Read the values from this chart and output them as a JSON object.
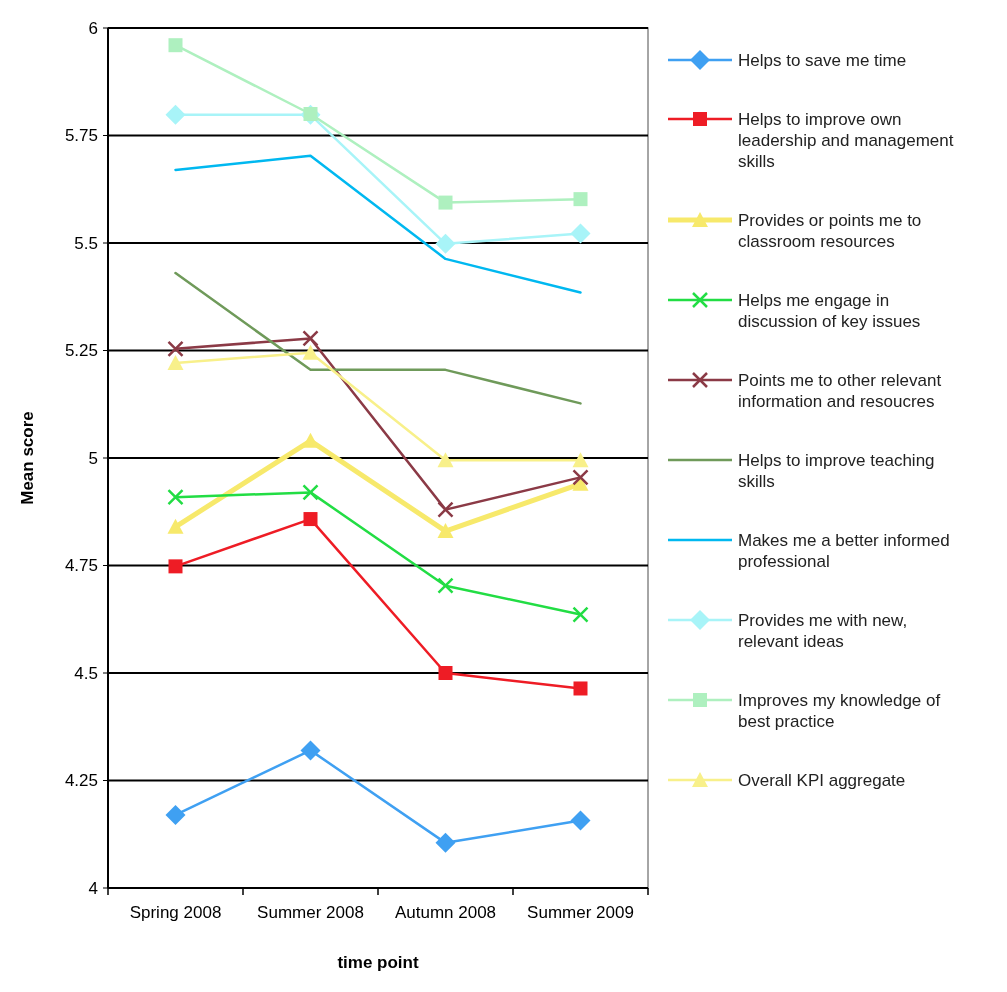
{
  "chart_data": {
    "type": "line",
    "xlabel": "time point",
    "ylabel": "Mean score",
    "categories": [
      "Spring 2008",
      "Summer 2008",
      "Autumn 2008",
      "Summer 2009"
    ],
    "ylim": [
      4,
      6
    ],
    "yticks": [
      4,
      4.25,
      4.5,
      4.75,
      5,
      5.25,
      5.5,
      5.75,
      6
    ],
    "grid": "y",
    "legend": "right",
    "series": [
      {
        "name": "Helps to save me time",
        "color": "#3fa0f2",
        "marker": "diamond",
        "values": [
          4.17,
          4.32,
          4.105,
          4.157
        ]
      },
      {
        "name": "Helps to improve own leadership and management skills",
        "color": "#ee1c25",
        "marker": "square",
        "values": [
          4.748,
          4.858,
          4.5,
          4.464
        ]
      },
      {
        "name": "Provides or points me to classroom resources",
        "color": "#f7e96b",
        "marker": "triangle",
        "values": [
          4.84,
          5.04,
          4.83,
          4.94
        ]
      },
      {
        "name": "Helps me engage in discussion of key issues",
        "color": "#22dd44",
        "marker": "cross",
        "values": [
          4.909,
          4.92,
          4.703,
          4.636
        ]
      },
      {
        "name": "Points me to other relevant information and resoucres",
        "color": "#8b3a46",
        "marker": "cross",
        "values": [
          5.254,
          5.278,
          4.88,
          4.955
        ]
      },
      {
        "name": "Helps to improve teaching skills",
        "color": "#6f9a5a",
        "marker": "none",
        "values": [
          5.43,
          5.205,
          5.205,
          5.127
        ]
      },
      {
        "name": "Makes me a better informed professional",
        "color": "#00b8f0",
        "marker": "none",
        "values": [
          5.67,
          5.703,
          5.463,
          5.385
        ]
      },
      {
        "name": "Provides me with new, relevant ideas",
        "color": "#a8f4f8",
        "marker": "diamond",
        "values": [
          5.798,
          5.798,
          5.498,
          5.522
        ]
      },
      {
        "name": "Improves my knowledge of best practice",
        "color": "#aef0bf",
        "marker": "square",
        "values": [
          5.96,
          5.8,
          5.594,
          5.602
        ]
      },
      {
        "name": "Overall KPI aggregate",
        "color": "#f8f08a",
        "marker": "triangle",
        "values": [
          5.221,
          5.245,
          4.995,
          4.995
        ]
      }
    ]
  }
}
